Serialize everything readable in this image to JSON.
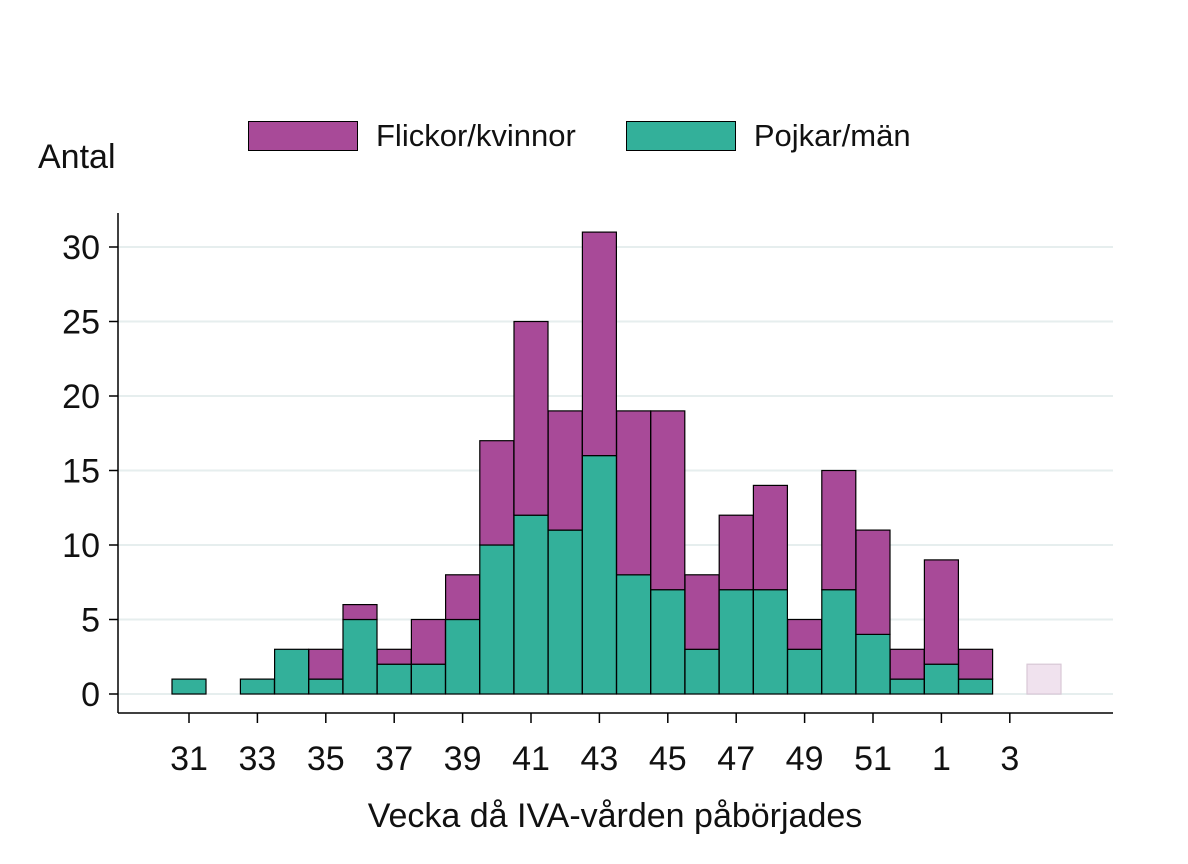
{
  "chart_data": {
    "type": "bar",
    "stacked": true,
    "ylabel": "Antal",
    "xlabel": "Vecka då IVA-vården påbörjades",
    "ylim": [
      0,
      32
    ],
    "yticks": [
      0,
      5,
      10,
      15,
      20,
      25,
      30
    ],
    "xtick_labels": [
      "31",
      "33",
      "35",
      "37",
      "39",
      "41",
      "43",
      "45",
      "47",
      "49",
      "51",
      "1",
      "3"
    ],
    "categories": [
      "31",
      "32",
      "33",
      "34",
      "35",
      "36",
      "37",
      "38",
      "39",
      "40",
      "41",
      "42",
      "43",
      "44",
      "45",
      "46",
      "47",
      "48",
      "49",
      "50",
      "51",
      "52",
      "1",
      "2",
      "3",
      "4"
    ],
    "grid": true,
    "legend_position": "top",
    "series": [
      {
        "name": "Pojkar/män",
        "color": "#33b09a",
        "values": [
          1,
          0,
          1,
          3,
          1,
          5,
          2,
          2,
          5,
          10,
          12,
          11,
          16,
          8,
          7,
          3,
          7,
          7,
          3,
          7,
          4,
          1,
          2,
          1,
          0,
          0
        ]
      },
      {
        "name": "Flickor/kvinnor",
        "color": "#a84a98",
        "values": [
          0,
          0,
          0,
          0,
          2,
          1,
          1,
          3,
          3,
          7,
          13,
          8,
          15,
          11,
          12,
          5,
          5,
          7,
          2,
          8,
          7,
          2,
          7,
          2,
          0,
          0
        ]
      }
    ],
    "faded_bar": {
      "category": "4",
      "value": 2,
      "color": "#f0e2ee"
    }
  }
}
